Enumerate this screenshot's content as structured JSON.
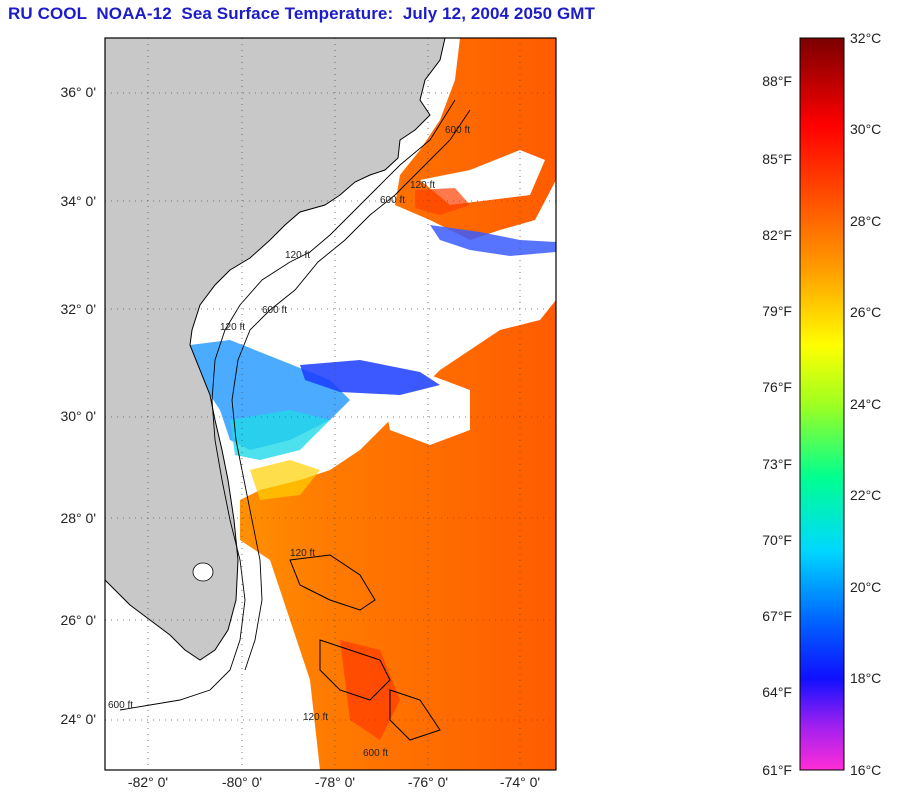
{
  "title": "RU COOL  NOAA-12  Sea Surface Temperature:  July 12, 2004 2050 GMT",
  "map": {
    "lat_labels": [
      "36° 0'",
      "34° 0'",
      "32° 0'",
      "30° 0'",
      "28° 0'",
      "26° 0'",
      "24° 0'"
    ],
    "lat_values": [
      36,
      34,
      32,
      30,
      28,
      26,
      24
    ],
    "lon_labels": [
      "-82° 0'",
      "-80° 0'",
      "-78° 0'",
      "-76° 0'",
      "-74° 0'"
    ],
    "lon_values": [
      -82,
      -80,
      -78,
      -76,
      -74
    ],
    "lat_range": [
      23.0,
      36.7
    ],
    "lon_range": [
      -83.0,
      -73.0
    ],
    "isobath_labels": [
      "120 ft",
      "600 ft",
      "120 ft",
      "600 ft",
      "120 ft",
      "600 ft",
      "120 ft",
      "600 ft",
      "120 ft",
      "600 ft"
    ],
    "colors": {
      "land": "#c8c8c8",
      "cloud": "#ffffff",
      "frame": "#000000"
    }
  },
  "colorbar": {
    "celsius_labels": [
      "32°C",
      "30°C",
      "28°C",
      "26°C",
      "24°C",
      "22°C",
      "20°C",
      "18°C",
      "16°C"
    ],
    "celsius_values": [
      32,
      30,
      28,
      26,
      24,
      22,
      20,
      18,
      16
    ],
    "fahrenheit_labels": [
      "88°F",
      "85°F",
      "82°F",
      "79°F",
      "76°F",
      "73°F",
      "70°F",
      "67°F",
      "64°F",
      "61°F"
    ],
    "fahrenheit_values": [
      88,
      85,
      82,
      79,
      76,
      73,
      70,
      67,
      64,
      61
    ],
    "range_c": [
      16,
      32
    ],
    "stops": [
      "#ff2dd6",
      "#8a2be2",
      "#0000ff",
      "#0078ff",
      "#00e6ff",
      "#00ff80",
      "#a0ff30",
      "#ffff00",
      "#ffb400",
      "#ff6400",
      "#ff0000",
      "#8b0000"
    ]
  }
}
